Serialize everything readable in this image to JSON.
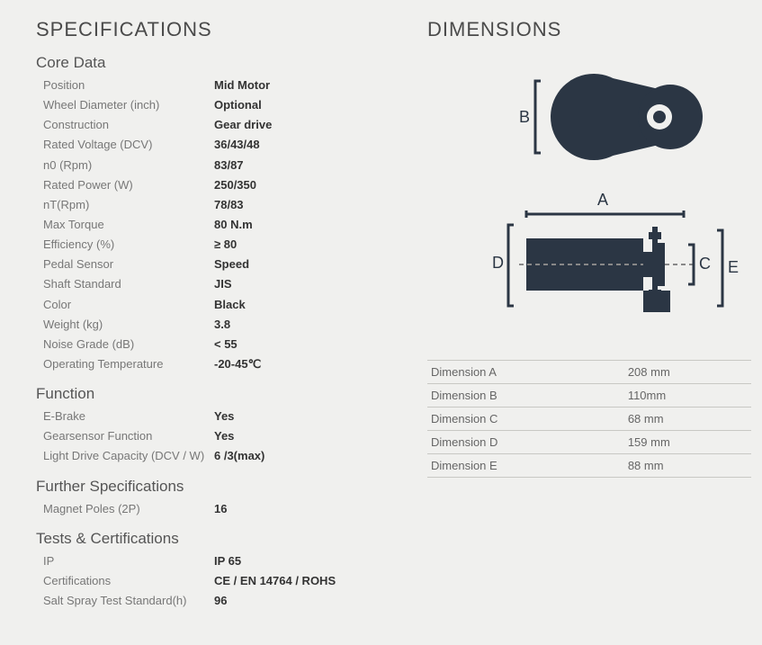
{
  "colors": {
    "page_bg": "#f0f0ee",
    "heading": "#4a4a4a",
    "subheading": "#555555",
    "label": "#777777",
    "value": "#333333",
    "diagram_fill": "#2b3644",
    "diagram_stroke": "#2b3644",
    "table_border": "#c8c8c4"
  },
  "typography": {
    "h1_size": 22,
    "h1_weight": 300,
    "h1_letterspacing": 1,
    "h2_size": 17,
    "h2_weight": 400,
    "row_size": 13
  },
  "specifications": {
    "heading": "SPECIFICATIONS",
    "sections": [
      {
        "title": "Core Data",
        "rows": [
          {
            "label": "Position",
            "value": "Mid Motor"
          },
          {
            "label": "Wheel Diameter (inch)",
            "value": "Optional"
          },
          {
            "label": "Construction",
            "value": "Gear drive"
          },
          {
            "label": "Rated Voltage (DCV)",
            "value": "36/43/48"
          },
          {
            "label": "n0 (Rpm)",
            "value": "83/87"
          },
          {
            "label": "Rated Power (W)",
            "value": "250/350"
          },
          {
            "label": "nT(Rpm)",
            "value": "78/83"
          },
          {
            "label": "Max Torque",
            "value": "80 N.m"
          },
          {
            "label": "Efficiency (%)",
            "value": "≥ 80"
          },
          {
            "label": "Pedal Sensor",
            "value": "Speed"
          },
          {
            "label": "Shaft Standard",
            "value": "JIS"
          },
          {
            "label": "Color",
            "value": "Black"
          },
          {
            "label": "Weight (kg)",
            "value": "3.8"
          },
          {
            "label": "Noise Grade (dB)",
            "value": "< 55"
          },
          {
            "label": "Operating Temperature",
            "value": "-20-45℃"
          }
        ]
      },
      {
        "title": "Function",
        "rows": [
          {
            "label": "E-Brake",
            "value": "Yes"
          },
          {
            "label": "Gearsensor Function",
            "value": "Yes"
          },
          {
            "label": "Light Drive Capacity (DCV / W)",
            "value": "6 /3(max)"
          }
        ]
      },
      {
        "title": "Further Specifications",
        "rows": [
          {
            "label": "Magnet Poles (2P)",
            "value": "16"
          }
        ]
      },
      {
        "title": "Tests & Certifications",
        "rows": [
          {
            "label": "IP",
            "value": "IP 65"
          },
          {
            "label": "Certifications",
            "value": "CE / EN 14764 / ROHS"
          },
          {
            "label": "Salt Spray Test Standard(h)",
            "value": "96"
          }
        ]
      }
    ]
  },
  "dimensions": {
    "heading": "DIMENSIONS",
    "diagram": {
      "type": "technical-drawing",
      "top_view": {
        "label_B": "B"
      },
      "side_view": {
        "label_A": "A",
        "label_C": "C",
        "label_D": "D",
        "label_E": "E"
      }
    },
    "table": [
      {
        "label": "Dimension A",
        "value": "208 mm"
      },
      {
        "label": "Dimension B",
        "value": "110mm"
      },
      {
        "label": "Dimension C",
        "value": "68 mm"
      },
      {
        "label": "Dimension D",
        "value": "159 mm"
      },
      {
        "label": "Dimension E",
        "value": "88 mm"
      }
    ]
  }
}
